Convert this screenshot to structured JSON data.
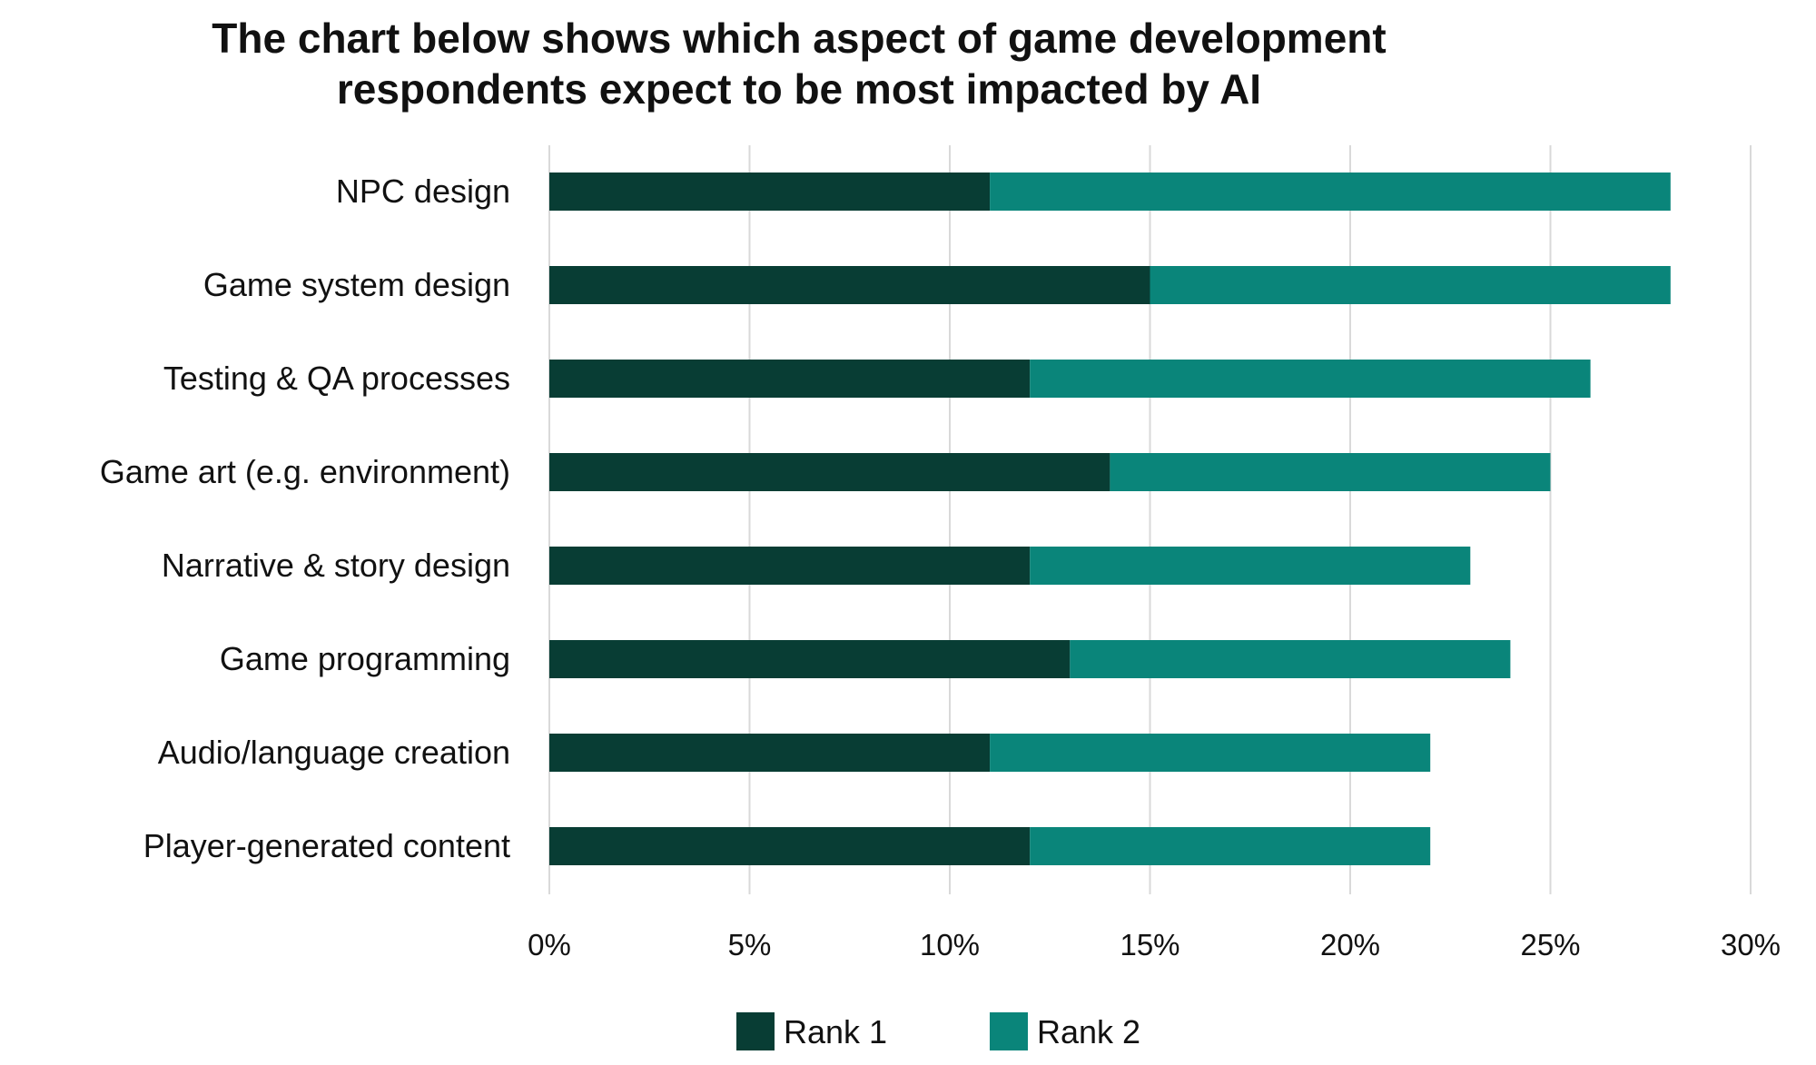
{
  "chart_data": {
    "type": "bar",
    "orientation": "horizontal",
    "stacked": true,
    "title_lines": [
      "The chart below shows which aspect of game development",
      "respondents expect to be most impacted by AI"
    ],
    "categories": [
      "NPC design",
      "Game system design",
      "Testing & QA processes",
      "Game art (e.g. environment)",
      "Narrative & story design",
      "Game programming",
      "Audio/language creation",
      "Player-generated content"
    ],
    "series": [
      {
        "name": "Rank 1",
        "color": "#083d34",
        "values": [
          11,
          15,
          12,
          14,
          12,
          13,
          11,
          12
        ]
      },
      {
        "name": "Rank 2",
        "color": "#0a857a",
        "values": [
          17,
          13,
          14,
          11,
          11,
          11,
          11,
          10
        ]
      }
    ],
    "value_unit": "%",
    "xlim": [
      0,
      30
    ],
    "x_ticks": [
      "0%",
      "5%",
      "10%",
      "15%",
      "20%",
      "25%",
      "30%"
    ],
    "grid": "vertical",
    "legend_position": "bottom"
  }
}
